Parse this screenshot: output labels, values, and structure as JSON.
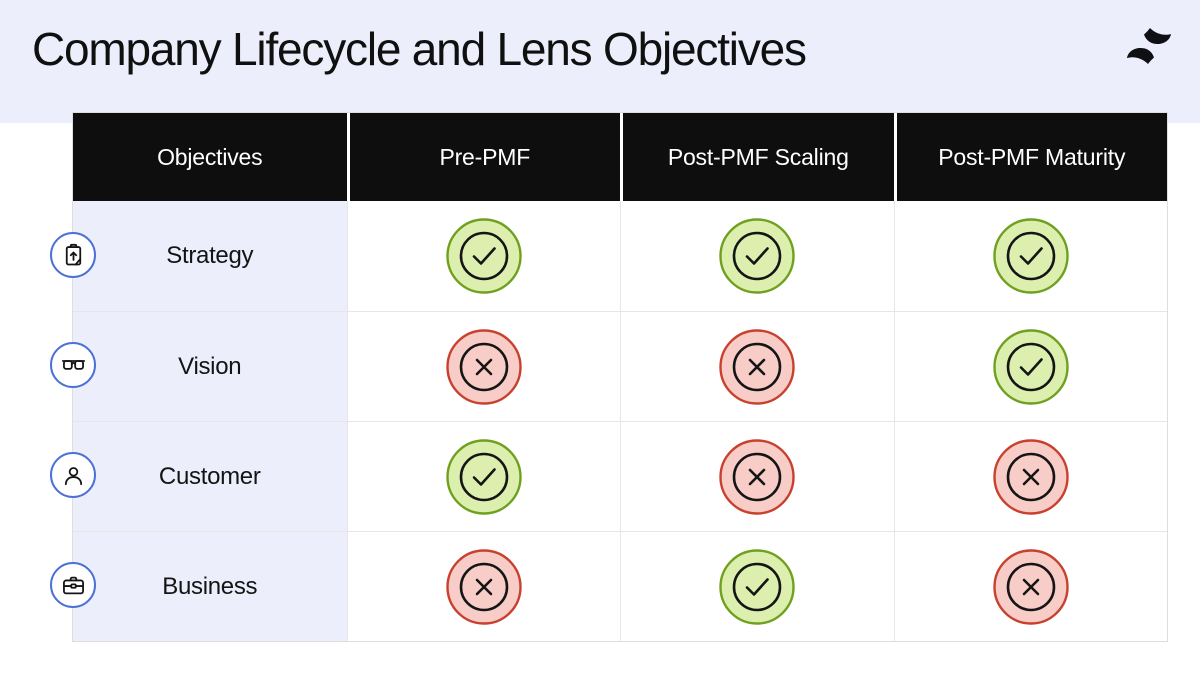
{
  "page": {
    "title": "Company Lifecycle and Lens Objectives"
  },
  "colors": {
    "band_bg": "#ECEEFB",
    "header_bg": "#0E0E0E",
    "header_text": "#FFFFFF",
    "label_col_bg": "#ECEEFB",
    "grid_line": "#E6E6E6",
    "check_fill": "#DCEFAE",
    "check_border": "#6FA01F",
    "cross_fill": "#F8CDC8",
    "cross_border": "#C8402E",
    "mark_stroke": "#151515",
    "icon_circle_border": "#4C70D6",
    "logo_color": "#101014"
  },
  "table": {
    "columns": [
      "Objectives",
      "Pre-PMF",
      "Post-PMF Scaling",
      "Post-PMF Maturity"
    ],
    "rows": [
      {
        "icon": "clipboard-arrow-icon",
        "label": "Strategy",
        "cells": [
          "check",
          "check",
          "check"
        ]
      },
      {
        "icon": "glasses-icon",
        "label": "Vision",
        "cells": [
          "cross",
          "cross",
          "check"
        ]
      },
      {
        "icon": "person-icon",
        "label": "Customer",
        "cells": [
          "check",
          "cross",
          "cross"
        ]
      },
      {
        "icon": "briefcase-icon",
        "label": "Business",
        "cells": [
          "cross",
          "check",
          "cross"
        ]
      }
    ]
  }
}
